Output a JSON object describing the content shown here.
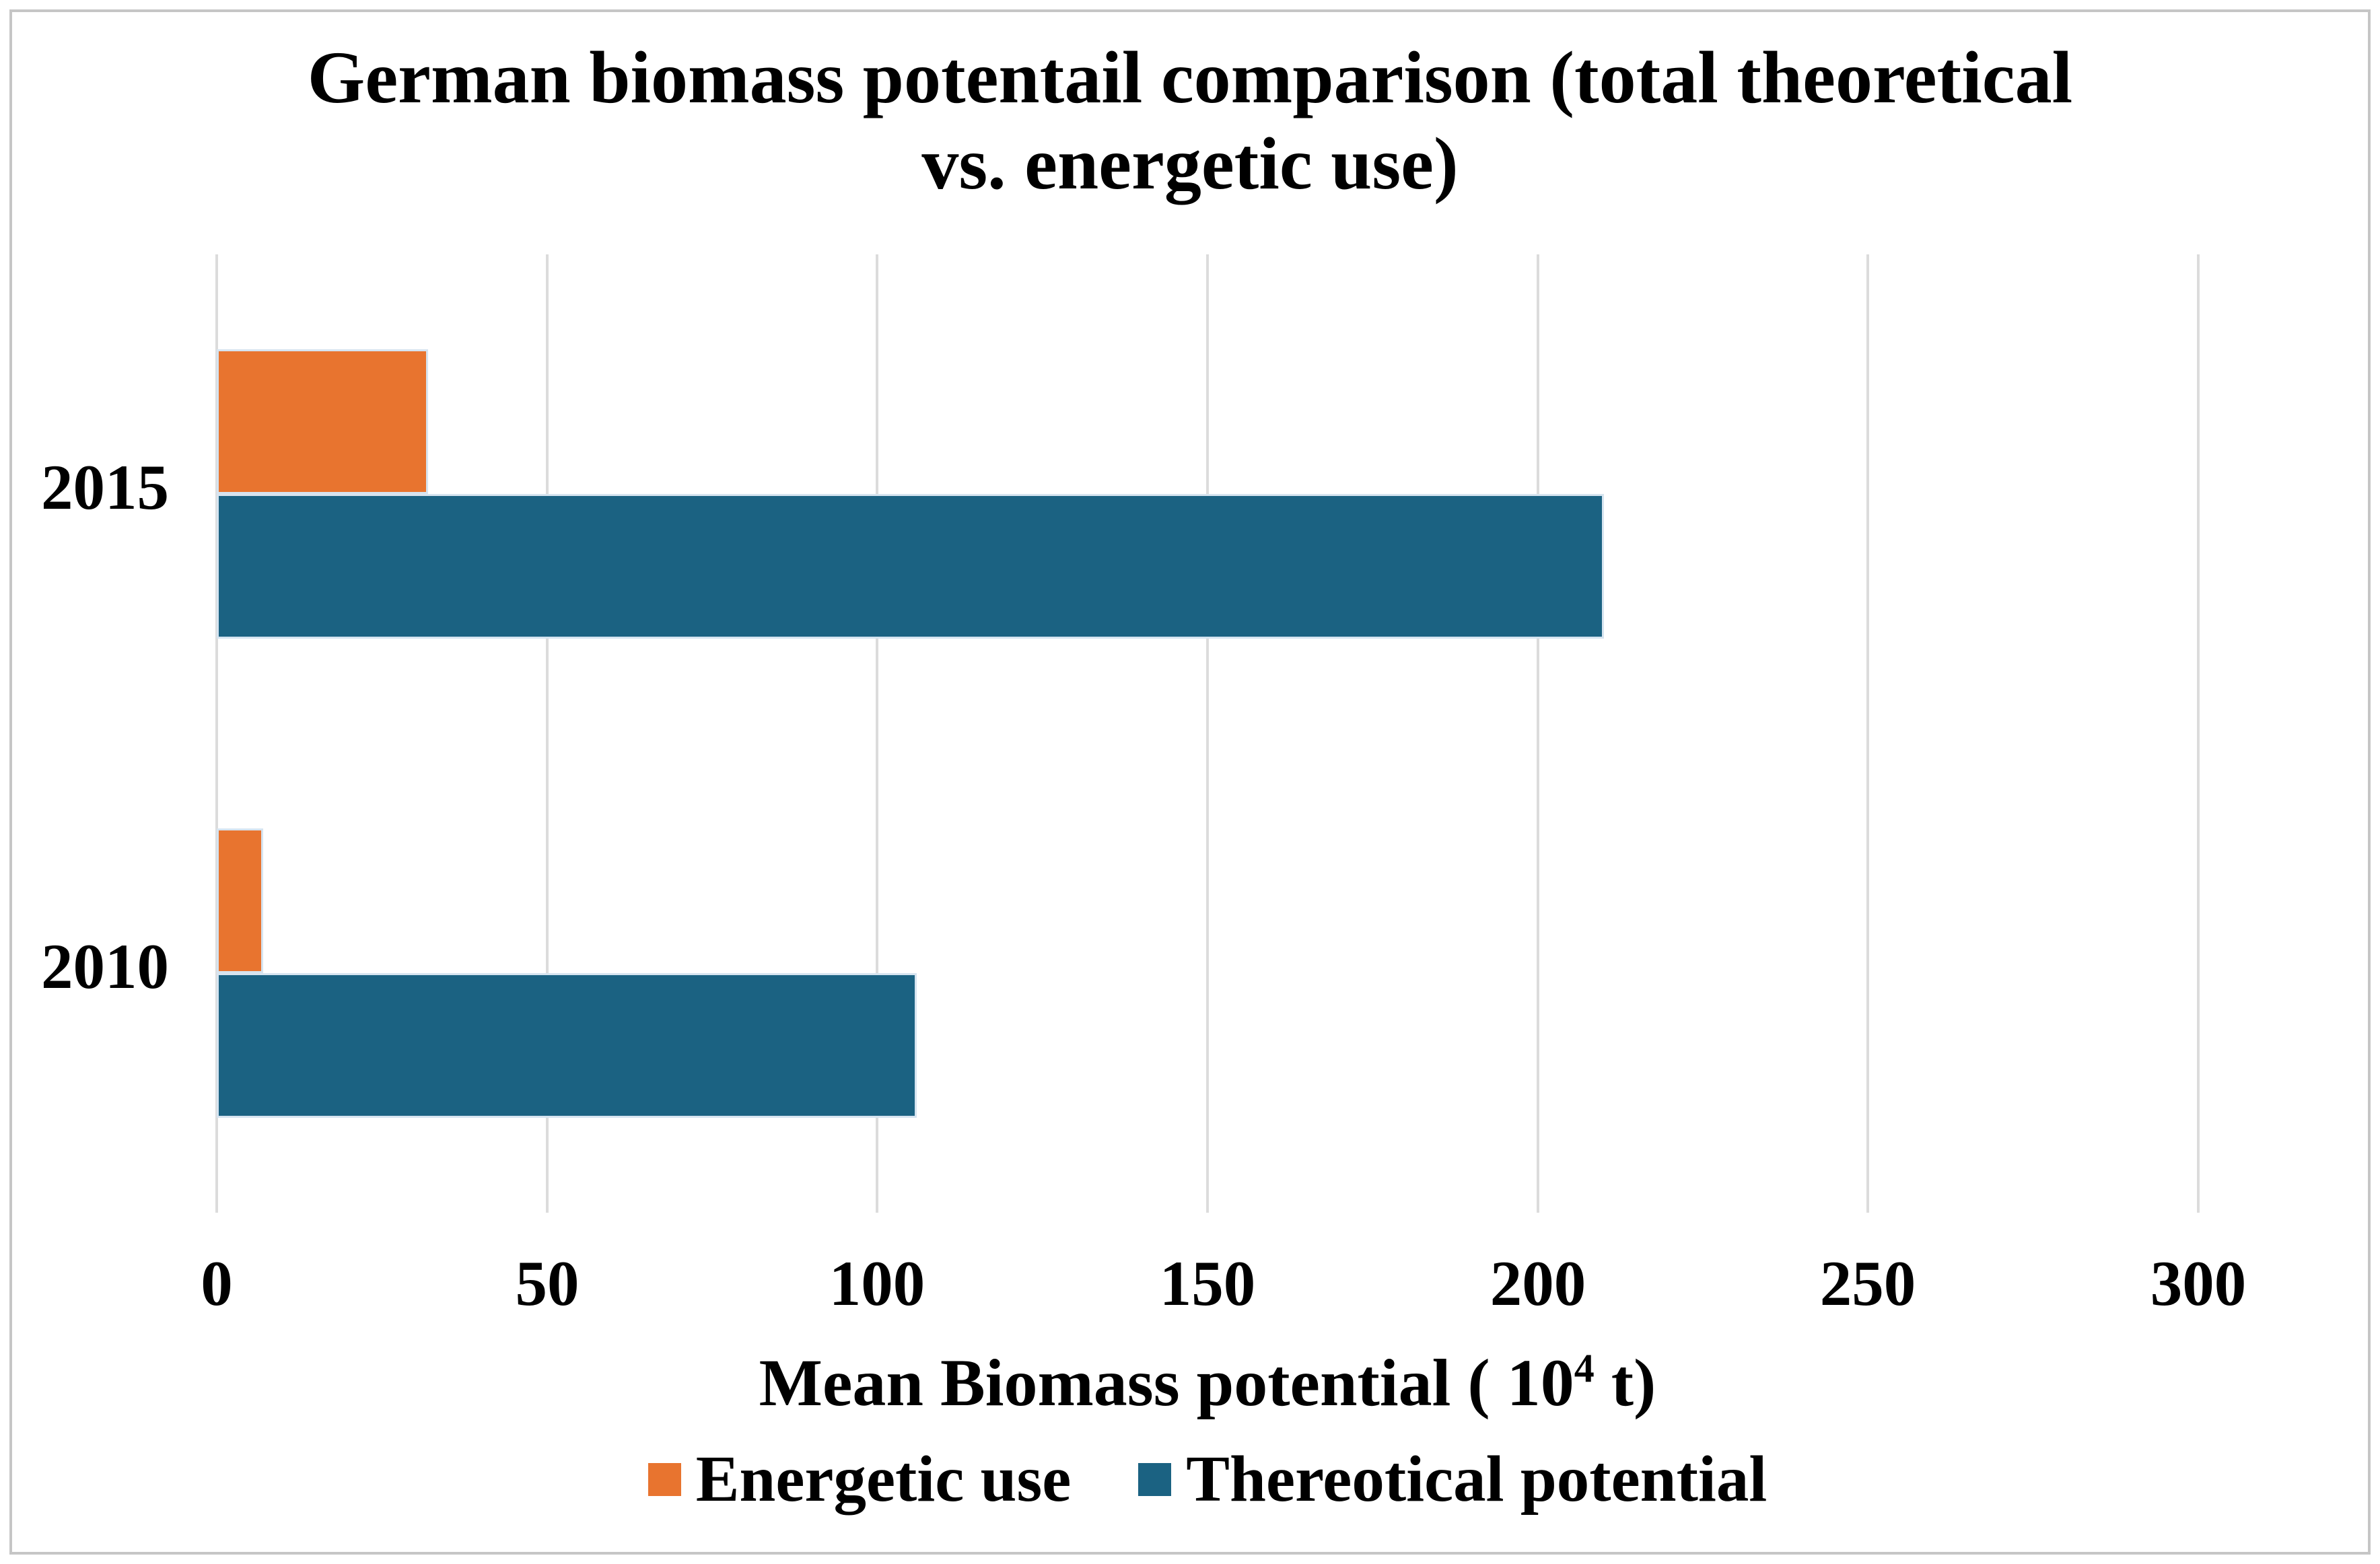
{
  "figure": {
    "title_line1": "German biomass potentail comparison (total theoretical",
    "title_line2": "vs. energetic use)",
    "x_axis": {
      "ticks": [
        "0",
        "50",
        "100",
        "150",
        "200",
        "250",
        "300"
      ],
      "title_prefix": "Mean Biomass potential ( 10",
      "title_superscript": "4",
      "title_suffix": " t)"
    }
  },
  "chart_data": {
    "type": "bar",
    "orientation": "horizontal",
    "title": "German biomass potentail comparison (total theoretical vs. energetic use)",
    "xlabel": "Mean Biomass potential ( 10^4 t)",
    "ylabel": "",
    "categories": [
      "2015",
      "2010"
    ],
    "series": [
      {
        "name": "Energetic use",
        "color": "#E8742F",
        "values": [
          32,
          7
        ]
      },
      {
        "name": "Thereotical potential",
        "color": "#1B6282",
        "values": [
          210,
          106
        ]
      }
    ],
    "xlim": [
      0,
      300
    ],
    "x_ticks": [
      0,
      50,
      100,
      150,
      200,
      250,
      300
    ],
    "gridlines": "vertical-every-50",
    "legend_position": "bottom"
  },
  "colors": {
    "background": "#FFFFFF",
    "gridline": "#DCDCDC",
    "text": "#000000",
    "frame_border": "#C6C6C6",
    "bar_border": "#D6E4F0",
    "energetic_use": "#E8742F",
    "theoretical_potential": "#1B6282"
  }
}
